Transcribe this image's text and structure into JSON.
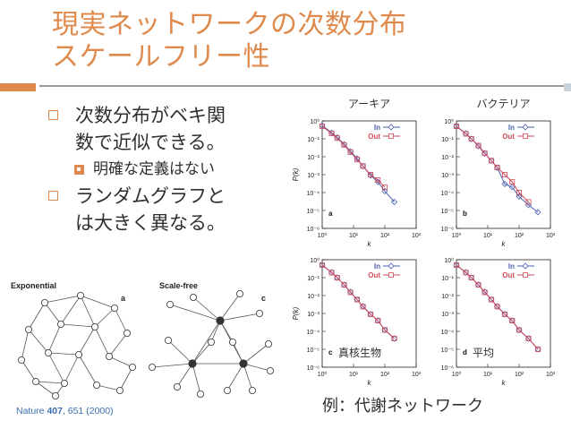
{
  "slide": {
    "title_line1": "現実ネットワークの次数分布",
    "title_line2": "スケールフリー性",
    "bullets": [
      {
        "text": "次数分布がベキ関",
        "text2": "数で近似できる。"
      },
      {
        "text": "ランダムグラフと",
        "text2": "は大きく異なる。"
      }
    ],
    "sub_bullet": "明確な定義はない",
    "citation_journal": "Nature ",
    "citation_volume": "407",
    "citation_pages": ", 651 (2000)",
    "caption": "例：代謝ネットワーク",
    "colors": {
      "accent": "#df8a4c",
      "in_series": "#4a5fb0",
      "out_series": "#d04a5a"
    }
  },
  "networks": {
    "left_label": "Exponential",
    "left_tag": "a",
    "right_label": "Scale-free",
    "right_tag": "c"
  },
  "chart_data": [
    {
      "type": "scatter",
      "panel": "a",
      "title": "アーキア",
      "xlabel": "k",
      "ylabel": "P(k)",
      "x_scale": "log",
      "y_scale": "log",
      "xlim": [
        1,
        1000
      ],
      "ylim": [
        1e-06,
        1
      ],
      "y_ticks": [
        "10⁰",
        "10⁻¹",
        "10⁻²",
        "10⁻³",
        "10⁻⁴",
        "10⁻⁵",
        "10⁻⁶"
      ],
      "x_ticks": [
        "10⁰",
        "10¹",
        "10²",
        "10³"
      ],
      "legend": [
        "In",
        "Out"
      ],
      "series": [
        {
          "name": "In",
          "x": [
            1,
            2,
            3,
            5,
            8,
            13,
            20,
            35,
            60,
            100,
            200
          ],
          "y": [
            0.55,
            0.22,
            0.12,
            0.05,
            0.02,
            0.008,
            0.003,
            0.0009,
            0.0004,
            0.00012,
            3e-05
          ]
        },
        {
          "name": "Out",
          "x": [
            1,
            2,
            3,
            5,
            8,
            13,
            20,
            35,
            60,
            100
          ],
          "y": [
            0.5,
            0.2,
            0.11,
            0.045,
            0.018,
            0.007,
            0.003,
            0.001,
            0.0005,
            0.0002
          ]
        }
      ]
    },
    {
      "type": "scatter",
      "panel": "b",
      "title": "バクテリア",
      "xlabel": "k",
      "ylabel": "",
      "x_scale": "log",
      "y_scale": "log",
      "xlim": [
        1,
        1000
      ],
      "ylim": [
        1e-06,
        1
      ],
      "legend": [
        "In",
        "Out"
      ],
      "series": [
        {
          "name": "In",
          "x": [
            1,
            2,
            3,
            5,
            8,
            13,
            20,
            35,
            60,
            100,
            200,
            400
          ],
          "y": [
            0.5,
            0.2,
            0.1,
            0.04,
            0.015,
            0.006,
            0.0025,
            0.0003,
            0.0002,
            6e-05,
            2e-05,
            8e-06
          ]
        },
        {
          "name": "Out",
          "x": [
            1,
            2,
            3,
            5,
            8,
            13,
            20,
            35,
            60,
            100,
            200
          ],
          "y": [
            0.5,
            0.19,
            0.1,
            0.042,
            0.016,
            0.006,
            0.0025,
            0.001,
            0.0004,
            0.0001,
            3e-05
          ]
        }
      ]
    },
    {
      "type": "scatter",
      "panel": "c",
      "title": "真核生物",
      "xlabel": "k",
      "ylabel": "P(k)",
      "x_scale": "log",
      "y_scale": "log",
      "xlim": [
        1,
        1000
      ],
      "ylim": [
        1e-06,
        1
      ],
      "legend": [
        "In",
        "Out"
      ],
      "series": [
        {
          "name": "In",
          "x": [
            1,
            2,
            3,
            5,
            8,
            13,
            20,
            35,
            60,
            100,
            200
          ],
          "y": [
            0.5,
            0.2,
            0.1,
            0.04,
            0.016,
            0.006,
            0.0025,
            0.0009,
            0.0004,
            0.00012,
            4e-05
          ]
        },
        {
          "name": "Out",
          "x": [
            1,
            2,
            3,
            5,
            8,
            13,
            20,
            35,
            60,
            100,
            200
          ],
          "y": [
            0.5,
            0.19,
            0.1,
            0.04,
            0.015,
            0.006,
            0.0024,
            0.0009,
            0.0004,
            0.00012,
            4e-05
          ]
        }
      ]
    },
    {
      "type": "scatter",
      "panel": "d",
      "title": "平均",
      "xlabel": "k",
      "ylabel": "",
      "x_scale": "log",
      "y_scale": "log",
      "xlim": [
        1,
        1000
      ],
      "ylim": [
        1e-06,
        1
      ],
      "legend": [
        "In",
        "Out"
      ],
      "series": [
        {
          "name": "In",
          "x": [
            1,
            2,
            3,
            5,
            8,
            13,
            20,
            35,
            60,
            100,
            200,
            400
          ],
          "y": [
            0.5,
            0.2,
            0.1,
            0.04,
            0.016,
            0.006,
            0.0025,
            0.0009,
            0.0004,
            0.00012,
            4e-05,
            1e-05
          ]
        },
        {
          "name": "Out",
          "x": [
            1,
            2,
            3,
            5,
            8,
            13,
            20,
            35,
            60,
            100,
            200,
            400
          ],
          "y": [
            0.5,
            0.19,
            0.1,
            0.04,
            0.015,
            0.006,
            0.0024,
            0.0009,
            0.0004,
            0.00012,
            4e-05,
            1e-05
          ]
        }
      ]
    }
  ]
}
